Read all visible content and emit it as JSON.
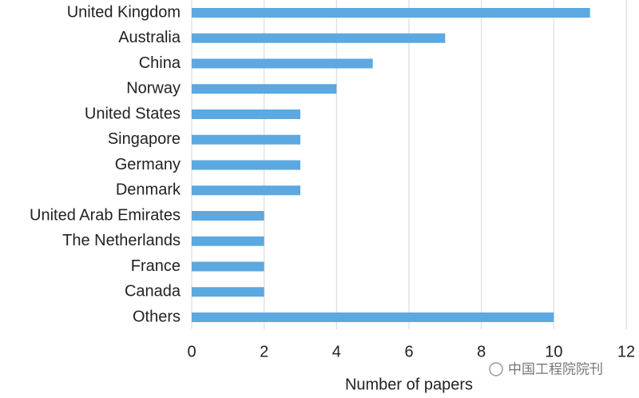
{
  "chart_data": {
    "type": "bar",
    "orientation": "horizontal",
    "x_label": "Number of papers",
    "categories": [
      "United Kingdom",
      "Australia",
      "China",
      "Norway",
      "United States",
      "Singapore",
      "Germany",
      "Denmark",
      "United Arab Emirates",
      "The Netherlands",
      "France",
      "Canada",
      "Others"
    ],
    "values": [
      11,
      7,
      5,
      4,
      3,
      3,
      3,
      3,
      2,
      2,
      2,
      2,
      10
    ],
    "color": "#5ca8e0",
    "xlim": [
      0,
      12
    ],
    "xticks": [
      0,
      2,
      4,
      6,
      8,
      10,
      12
    ],
    "grid": true,
    "watermark": "中国工程院院刊"
  }
}
